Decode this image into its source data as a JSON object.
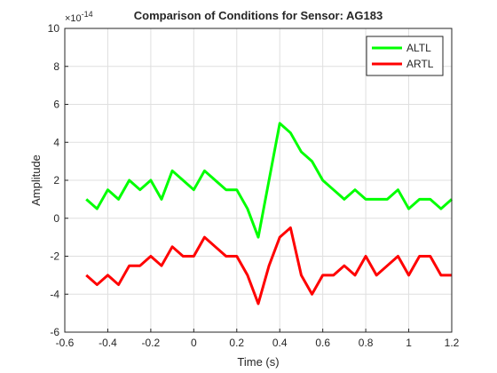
{
  "chart_data": {
    "type": "line",
    "title": "Comparison of Conditions for Sensor: AG183",
    "x_label": "Time (s)",
    "y_label": "Amplitude",
    "y_exponent": {
      "base": "×10",
      "power": "-14"
    },
    "x": [
      -0.5,
      -0.45,
      -0.4,
      -0.35,
      -0.3,
      -0.25,
      -0.2,
      -0.15,
      -0.1,
      -0.05,
      0,
      0.05,
      0.1,
      0.15,
      0.2,
      0.25,
      0.3,
      0.35,
      0.4,
      0.45,
      0.5,
      0.55,
      0.6,
      0.65,
      0.7,
      0.75,
      0.8,
      0.85,
      0.9,
      0.95,
      1.0,
      1.05,
      1.1,
      1.15,
      1.2
    ],
    "series": [
      {
        "name": "ALTL",
        "color": "#00ff00",
        "values": [
          1,
          0.5,
          1.5,
          1,
          2,
          1.5,
          2,
          1,
          2.5,
          2,
          1.5,
          2.5,
          2,
          1.5,
          1.5,
          0.5,
          -1,
          2,
          5,
          4.5,
          3.5,
          3,
          2,
          1.5,
          1,
          1.5,
          1,
          1,
          1,
          1.5,
          0.5,
          1,
          1,
          0.5,
          1
        ]
      },
      {
        "name": "ARTL",
        "color": "#ff0000",
        "values": [
          -3,
          -3.5,
          -3,
          -3.5,
          -2.5,
          -2.5,
          -2,
          -2.5,
          -1.5,
          -2,
          -2,
          -1,
          -1.5,
          -2,
          -2,
          -3,
          -4.5,
          -2.5,
          -1,
          -0.5,
          -3,
          -4,
          -3,
          -3,
          -2.5,
          -3,
          -2,
          -3,
          -2.5,
          -2,
          -3,
          -2,
          -2,
          -3,
          -3
        ]
      }
    ],
    "xlim": [
      -0.6,
      1.2
    ],
    "ylim": [
      -6,
      10
    ],
    "xticks": [
      -0.6,
      -0.4,
      -0.2,
      0,
      0.2,
      0.4,
      0.6,
      0.8,
      1,
      1.2
    ],
    "yticks": [
      -6,
      -4,
      -2,
      0,
      2,
      4,
      6,
      8,
      10
    ],
    "grid": true,
    "legend": "top-right"
  }
}
